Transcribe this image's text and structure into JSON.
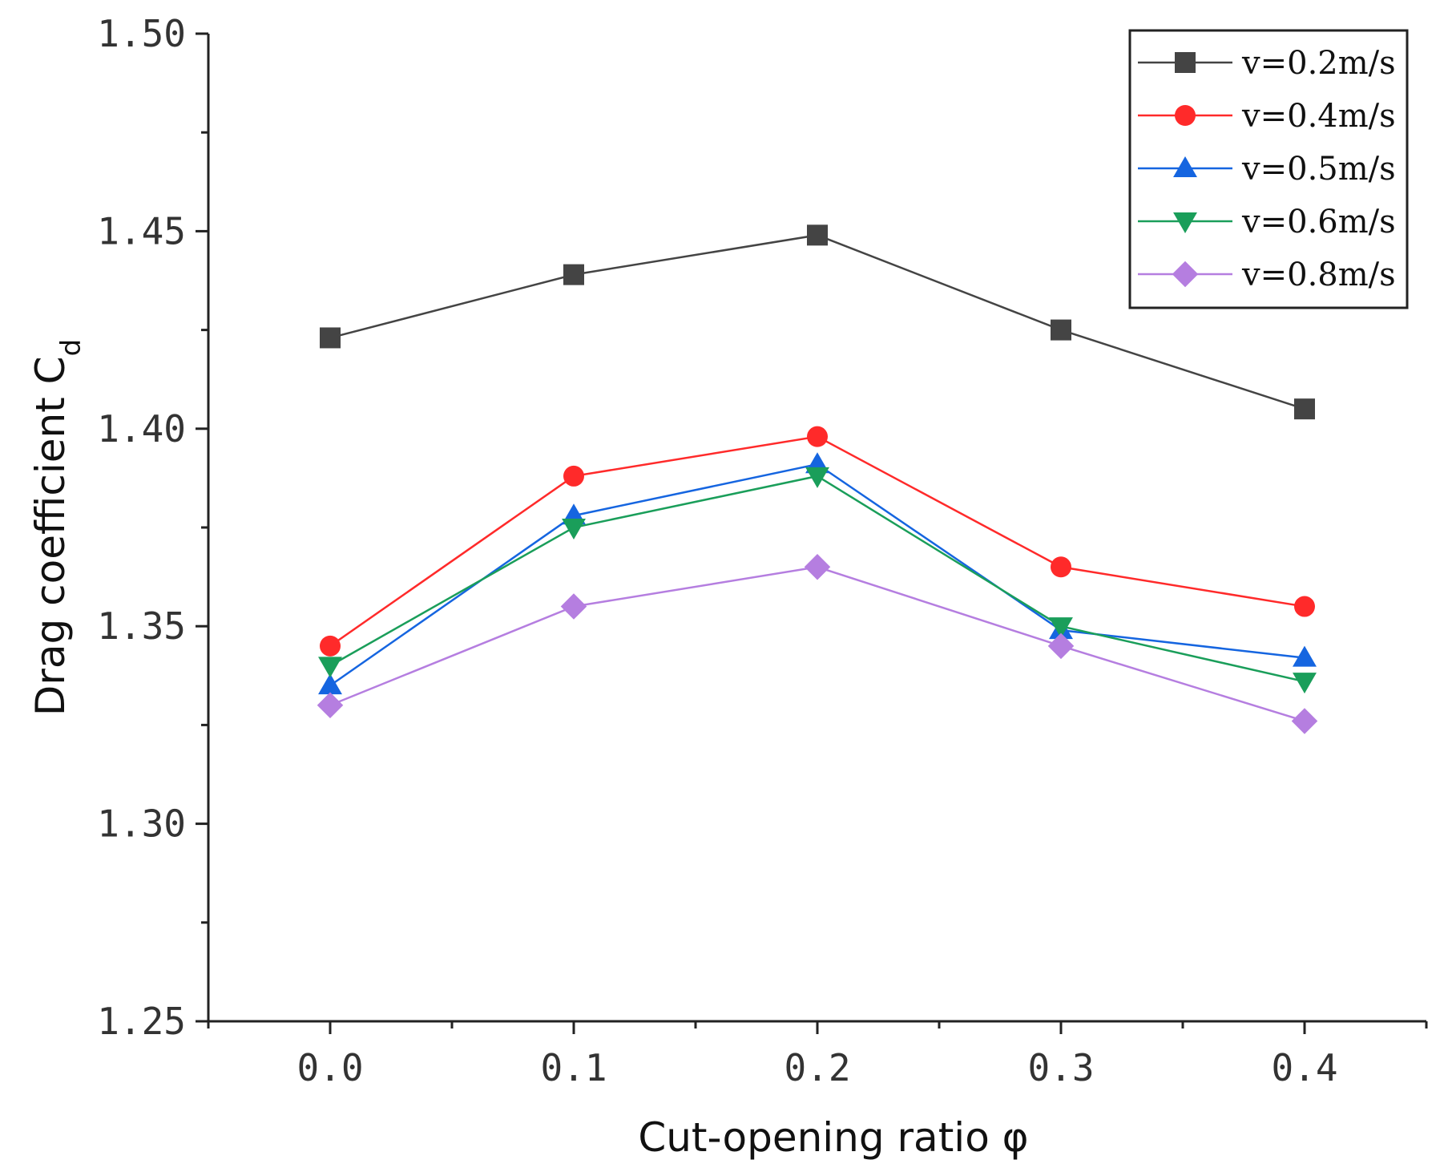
{
  "chart_data": {
    "type": "line",
    "title": "",
    "xlabel": "Cut-opening ratio φ",
    "ylabel": {
      "main": "Drag coefficient C",
      "subscript": "d"
    },
    "x": [
      0.0,
      0.1,
      0.2,
      0.3,
      0.4
    ],
    "x_tick_labels": [
      "0.0",
      "0.1",
      "0.2",
      "0.3",
      "0.4"
    ],
    "xlim": [
      -0.05,
      0.45
    ],
    "ylim": [
      1.25,
      1.5
    ],
    "y_ticks": [
      1.25,
      1.3,
      1.35,
      1.4,
      1.45,
      1.5
    ],
    "y_tick_labels": [
      "1.25",
      "1.30",
      "1.35",
      "1.40",
      "1.45",
      "1.50"
    ],
    "grid": false,
    "legend_position": "top-right",
    "series": [
      {
        "name": "v=0.2m/s",
        "marker": "square",
        "color": "#444444",
        "values": [
          1.423,
          1.439,
          1.449,
          1.425,
          1.405
        ]
      },
      {
        "name": "v=0.4m/s",
        "marker": "circle",
        "color": "#ff2a2a",
        "values": [
          1.345,
          1.388,
          1.398,
          1.365,
          1.355
        ]
      },
      {
        "name": "v=0.5m/s",
        "marker": "triangle-up",
        "color": "#1565e0",
        "values": [
          1.335,
          1.378,
          1.391,
          1.349,
          1.342
        ]
      },
      {
        "name": "v=0.6m/s",
        "marker": "triangle-down",
        "color": "#1a9e5a",
        "values": [
          1.34,
          1.375,
          1.388,
          1.35,
          1.336
        ]
      },
      {
        "name": "v=0.8m/s",
        "marker": "diamond",
        "color": "#b57ee0",
        "values": [
          1.33,
          1.355,
          1.365,
          1.345,
          1.326
        ]
      }
    ]
  }
}
